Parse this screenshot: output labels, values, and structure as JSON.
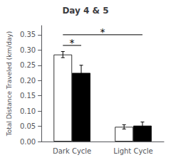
{
  "chart_data": {
    "type": "bar",
    "title": "Day 4 & 5",
    "ylabel": "Total Distance Traveled (km/day)",
    "categories": [
      "Dark Cycle",
      "Light Cycle"
    ],
    "series": [
      {
        "color": "white",
        "values": [
          0.285,
          0.048
        ],
        "errors": [
          0.01,
          0.007
        ]
      },
      {
        "color": "black",
        "values": [
          0.225,
          0.052
        ],
        "errors": [
          0.025,
          0.012
        ]
      }
    ],
    "annotations": [
      {
        "text": "*",
        "y": 0.315,
        "from": [
          "Dark Cycle",
          0
        ],
        "to": [
          "Dark Cycle",
          1
        ]
      },
      {
        "text": "*",
        "y": 0.35,
        "from": [
          "Dark Cycle",
          0
        ],
        "to": [
          "Light Cycle",
          1
        ]
      }
    ],
    "ylim": [
      0,
      0.38
    ],
    "yticks": [
      {
        "value": 0.0,
        "label": "0.00"
      },
      0.05,
      {
        "value": 0.1,
        "label": "0.10"
      },
      0.15,
      {
        "value": 0.2,
        "label": "0.20"
      },
      0.25,
      {
        "value": 0.3,
        "label": "0.30"
      },
      0.35
    ],
    "grid": false
  }
}
